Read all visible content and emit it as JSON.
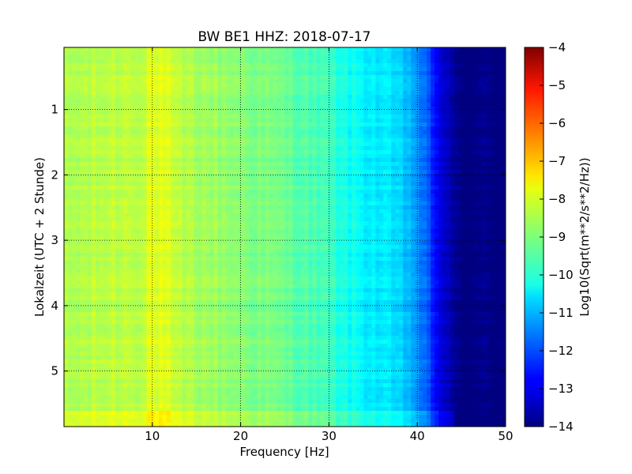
{
  "chart_data": {
    "type": "heatmap",
    "title": "BW BE1 HHZ: 2018-07-17",
    "xlabel": "Frequency [Hz]",
    "ylabel": "Lokalzeit (UTC + 2 Stunde)",
    "xlim": [
      0,
      50
    ],
    "ylim": [
      5.85,
      0.05
    ],
    "xticks": [
      10,
      20,
      30,
      40,
      50
    ],
    "xtick_labels": [
      "10",
      "20",
      "30",
      "40",
      "50"
    ],
    "yticks": [
      1,
      2,
      3,
      4,
      5
    ],
    "ytick_labels": [
      "1",
      "2",
      "3",
      "4",
      "5"
    ],
    "grid": true,
    "colorbar": {
      "label": "Log10(Sqrt(m**2/s**2/Hz))",
      "range": [
        -14,
        -4
      ],
      "ticks": [
        -4,
        -5,
        -6,
        -7,
        -8,
        -9,
        -10,
        -11,
        -12,
        -13,
        -14
      ],
      "tick_labels": [
        "−4",
        "−5",
        "−6",
        "−7",
        "−8",
        "−9",
        "−10",
        "−11",
        "−12",
        "−13",
        "−14"
      ],
      "colormap": "jet"
    },
    "spectrum_profile": {
      "frequency_hz": [
        0,
        5,
        10,
        15,
        20,
        25,
        28,
        30,
        32,
        35,
        37,
        39,
        40,
        41,
        42,
        43,
        44,
        45,
        50
      ],
      "log_amplitude": [
        -8.6,
        -8.4,
        -8.3,
        -8.6,
        -8.9,
        -9.2,
        -9.5,
        -9.7,
        -10.1,
        -10.4,
        -10.6,
        -10.9,
        -11.3,
        -11.9,
        -12.6,
        -13.2,
        -13.8,
        -14,
        -14
      ]
    }
  }
}
